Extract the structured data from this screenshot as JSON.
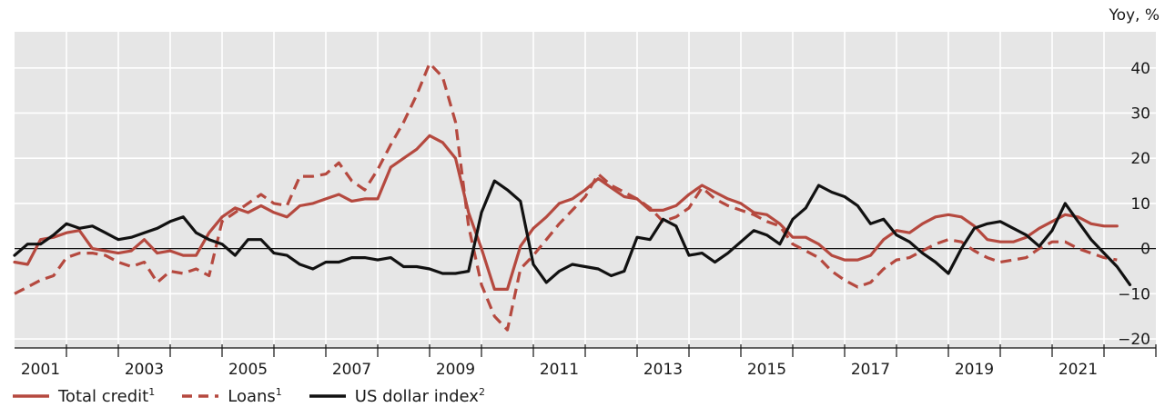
{
  "chart_data": {
    "type": "line",
    "unit_label": "Yoy, %",
    "ylim": [
      -22,
      48
    ],
    "yticks": [
      40,
      30,
      20,
      10,
      0,
      -10,
      -20
    ],
    "xlim": [
      2000,
      2022
    ],
    "x_tick_labels": [
      "2001",
      "2003",
      "2005",
      "2007",
      "2009",
      "2011",
      "2013",
      "2015",
      "2017",
      "2019",
      "2021"
    ],
    "colors": {
      "credit": "#b5493f",
      "usd": "#111111",
      "zero": "#111111"
    },
    "series": [
      {
        "key": "total_credit",
        "name": "Total credit",
        "footnote": "1",
        "style": "solid",
        "x": [
          2000.0,
          2000.25,
          2000.5,
          2000.75,
          2001.0,
          2001.25,
          2001.5,
          2001.75,
          2002.0,
          2002.25,
          2002.5,
          2002.75,
          2003.0,
          2003.25,
          2003.5,
          2003.75,
          2004.0,
          2004.25,
          2004.5,
          2004.75,
          2005.0,
          2005.25,
          2005.5,
          2005.75,
          2006.0,
          2006.25,
          2006.5,
          2006.75,
          2007.0,
          2007.25,
          2007.5,
          2007.75,
          2008.0,
          2008.25,
          2008.5,
          2008.75,
          2009.0,
          2009.25,
          2009.5,
          2009.75,
          2010.0,
          2010.25,
          2010.5,
          2010.75,
          2011.0,
          2011.25,
          2011.5,
          2011.75,
          2012.0,
          2012.25,
          2012.5,
          2012.75,
          2013.0,
          2013.25,
          2013.5,
          2013.75,
          2014.0,
          2014.25,
          2014.5,
          2014.75,
          2015.0,
          2015.25,
          2015.5,
          2015.75,
          2016.0,
          2016.25,
          2016.5,
          2016.75,
          2017.0,
          2017.25,
          2017.5,
          2017.75,
          2018.0,
          2018.25,
          2018.5,
          2018.75,
          2019.0,
          2019.25,
          2019.5,
          2019.75,
          2020.0,
          2020.25,
          2020.5,
          2020.75,
          2021.0,
          2021.25
        ],
        "values": [
          -3.0,
          -3.5,
          2.0,
          2.5,
          3.5,
          4.0,
          0.0,
          -0.5,
          -1.0,
          -0.5,
          2.0,
          -1.0,
          -0.5,
          -1.5,
          -1.5,
          3.5,
          7.0,
          9.0,
          8.0,
          9.5,
          8.0,
          7.0,
          9.5,
          10.0,
          11.0,
          12.0,
          10.5,
          11.0,
          11.0,
          18.0,
          20.0,
          22.0,
          25.0,
          23.5,
          20.0,
          8.0,
          0.0,
          -9.0,
          -9.0,
          0.5,
          4.5,
          7.0,
          10.0,
          11.0,
          13.0,
          15.5,
          13.5,
          11.5,
          11.0,
          8.5,
          8.5,
          9.5,
          12.0,
          14.0,
          12.5,
          11.0,
          10.0,
          8.0,
          7.5,
          5.5,
          2.5,
          2.5,
          1.0,
          -1.5,
          -2.5,
          -2.5,
          -1.5,
          2.0,
          4.0,
          3.5,
          5.5,
          7.0,
          7.5,
          7.0,
          5.0,
          2.0,
          1.5,
          1.5,
          2.5,
          4.5,
          6.0,
          7.5,
          7.0,
          5.5,
          5.0,
          5.0
        ]
      },
      {
        "key": "loans",
        "name": "Loans",
        "footnote": "1",
        "style": "dashed",
        "x": [
          2000.0,
          2000.25,
          2000.5,
          2000.75,
          2001.0,
          2001.25,
          2001.5,
          2001.75,
          2002.0,
          2002.25,
          2002.5,
          2002.75,
          2003.0,
          2003.25,
          2003.5,
          2003.75,
          2004.0,
          2004.25,
          2004.5,
          2004.75,
          2005.0,
          2005.25,
          2005.5,
          2005.75,
          2006.0,
          2006.25,
          2006.5,
          2006.75,
          2007.0,
          2007.25,
          2007.5,
          2007.75,
          2008.0,
          2008.25,
          2008.5,
          2008.75,
          2009.0,
          2009.25,
          2009.5,
          2009.75,
          2010.0,
          2010.25,
          2010.5,
          2010.75,
          2011.0,
          2011.25,
          2011.5,
          2011.75,
          2012.0,
          2012.25,
          2012.5,
          2012.75,
          2013.0,
          2013.25,
          2013.5,
          2013.75,
          2014.0,
          2014.25,
          2014.5,
          2014.75,
          2015.0,
          2015.25,
          2015.5,
          2015.75,
          2016.0,
          2016.25,
          2016.5,
          2016.75,
          2017.0,
          2017.25,
          2017.5,
          2017.75,
          2018.0,
          2018.25,
          2018.5,
          2018.75,
          2019.0,
          2019.25,
          2019.5,
          2019.75,
          2020.0,
          2020.25,
          2020.5,
          2020.75,
          2021.0,
          2021.25
        ],
        "values": [
          -10.0,
          -8.5,
          -7.0,
          -6.0,
          -2.0,
          -1.0,
          -1.0,
          -1.5,
          -3.0,
          -4.0,
          -3.0,
          -7.5,
          -5.0,
          -5.5,
          -4.5,
          -6.0,
          6.0,
          8.0,
          10.0,
          12.0,
          10.0,
          9.5,
          16.0,
          16.0,
          16.5,
          19.0,
          15.0,
          13.0,
          17.5,
          23.0,
          28.0,
          34.0,
          41.0,
          38.0,
          28.0,
          5.0,
          -8.0,
          -15.0,
          -18.0,
          -4.5,
          -1.5,
          2.0,
          5.5,
          8.5,
          11.5,
          16.5,
          14.0,
          12.5,
          11.0,
          9.0,
          6.0,
          7.0,
          9.0,
          13.5,
          11.0,
          9.5,
          8.5,
          7.5,
          6.0,
          5.0,
          1.0,
          -0.5,
          -2.0,
          -5.0,
          -7.0,
          -8.5,
          -7.5,
          -4.5,
          -2.5,
          -2.0,
          -0.5,
          1.0,
          2.0,
          1.5,
          -0.5,
          -2.0,
          -3.0,
          -2.5,
          -2.0,
          0.0,
          1.5,
          1.5,
          0.0,
          -1.0,
          -2.0,
          -2.5
        ]
      },
      {
        "key": "usd",
        "name": "US dollar index",
        "footnote": "2",
        "style": "solid",
        "x": [
          2000.0,
          2000.25,
          2000.5,
          2000.75,
          2001.0,
          2001.25,
          2001.5,
          2001.75,
          2002.0,
          2002.25,
          2002.5,
          2002.75,
          2003.0,
          2003.25,
          2003.5,
          2003.75,
          2004.0,
          2004.25,
          2004.5,
          2004.75,
          2005.0,
          2005.25,
          2005.5,
          2005.75,
          2006.0,
          2006.25,
          2006.5,
          2006.75,
          2007.0,
          2007.25,
          2007.5,
          2007.75,
          2008.0,
          2008.25,
          2008.5,
          2008.75,
          2009.0,
          2009.25,
          2009.5,
          2009.75,
          2010.0,
          2010.25,
          2010.5,
          2010.75,
          2011.0,
          2011.25,
          2011.5,
          2011.75,
          2012.0,
          2012.25,
          2012.5,
          2012.75,
          2013.0,
          2013.25,
          2013.5,
          2013.75,
          2014.0,
          2014.25,
          2014.5,
          2014.75,
          2015.0,
          2015.25,
          2015.5,
          2015.75,
          2016.0,
          2016.25,
          2016.5,
          2016.75,
          2017.0,
          2017.25,
          2017.5,
          2017.75,
          2018.0,
          2018.25,
          2018.5,
          2018.75,
          2019.0,
          2019.25,
          2019.5,
          2019.75,
          2020.0,
          2020.25,
          2020.5,
          2020.75,
          2021.0,
          2021.25,
          2021.5
        ],
        "values": [
          -1.5,
          1.0,
          1.0,
          3.0,
          5.5,
          4.5,
          5.0,
          3.5,
          2.0,
          2.5,
          3.5,
          4.5,
          6.0,
          7.0,
          3.5,
          2.0,
          1.0,
          -1.5,
          2.0,
          2.0,
          -1.0,
          -1.5,
          -3.5,
          -4.5,
          -3.0,
          -3.0,
          -2.0,
          -2.0,
          -2.5,
          -2.0,
          -4.0,
          -4.0,
          -4.5,
          -5.5,
          -5.5,
          -5.0,
          8.0,
          15.0,
          13.0,
          10.5,
          -3.5,
          -7.5,
          -5.0,
          -3.5,
          -4.0,
          -4.5,
          -6.0,
          -5.0,
          2.5,
          2.0,
          6.5,
          5.0,
          -1.5,
          -1.0,
          -3.0,
          -1.0,
          1.5,
          4.0,
          3.0,
          1.0,
          6.5,
          9.0,
          14.0,
          12.5,
          11.5,
          9.5,
          5.5,
          6.5,
          3.0,
          1.5,
          -1.0,
          -3.0,
          -5.5,
          0.0,
          4.5,
          5.5,
          6.0,
          4.5,
          3.0,
          0.5,
          4.0,
          10.0,
          6.0,
          2.0,
          -1.0,
          -4.0,
          -8.0
        ]
      }
    ]
  },
  "legend": {
    "items": [
      {
        "label": "Total credit",
        "footnote": "1"
      },
      {
        "label": "Loans",
        "footnote": "1"
      },
      {
        "label": "US dollar index",
        "footnote": "2"
      }
    ]
  }
}
